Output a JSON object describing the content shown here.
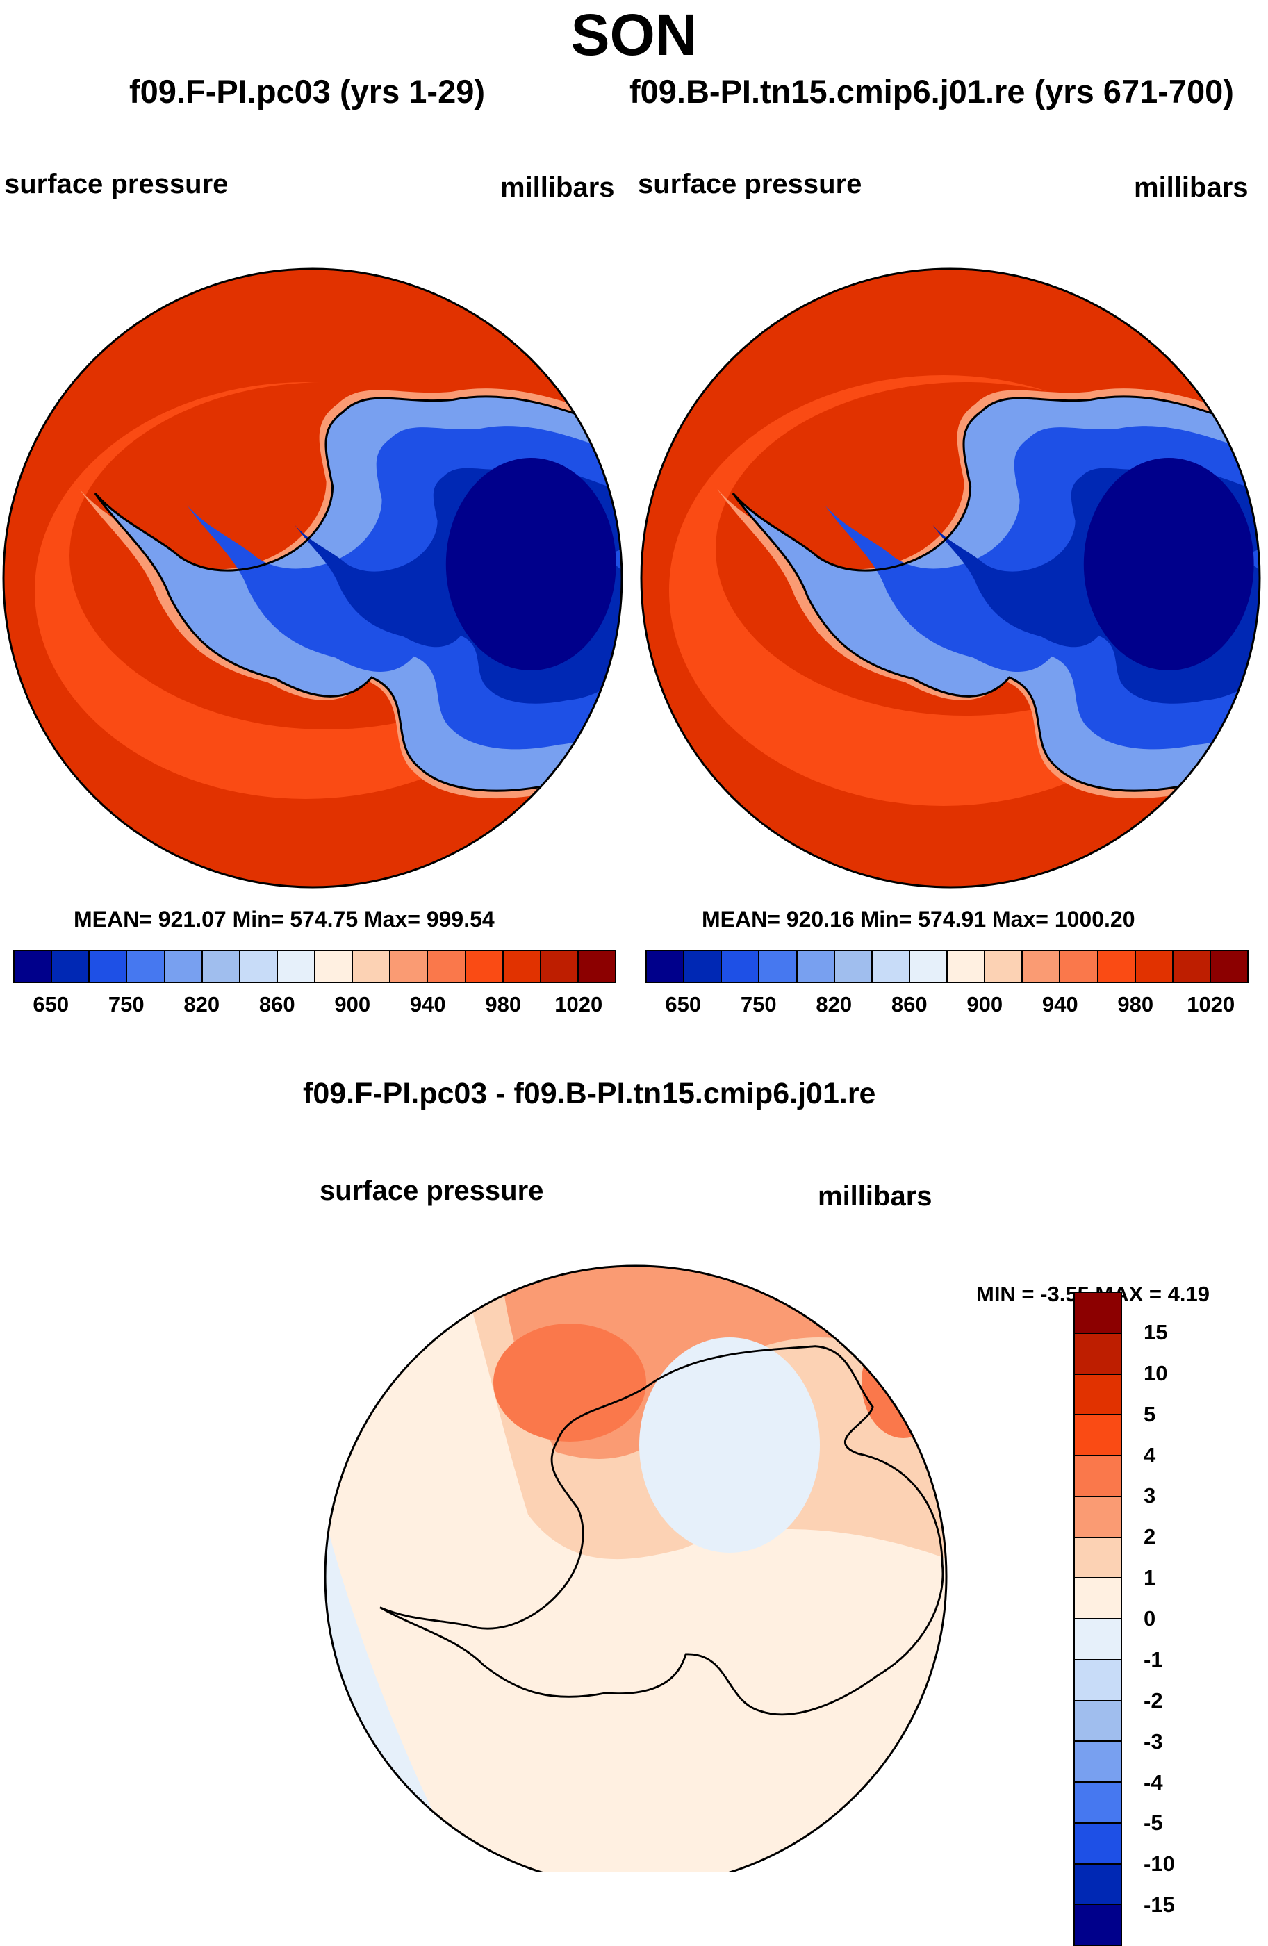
{
  "figure_title": "SON",
  "colors": {
    "abs_levels": [
      "#00008b",
      "#0028b4",
      "#1e50e6",
      "#4678f0",
      "#78a0f0",
      "#a0beee",
      "#c8dcf8",
      "#e6f0fa",
      "#fff0e1",
      "#fcd2b4",
      "#fa9b73",
      "#fa784b",
      "#fa4b14",
      "#e13200",
      "#be1e00",
      "#8c0000"
    ],
    "diff_levels": [
      "#8c0000",
      "#be1e00",
      "#e13200",
      "#fa4b14",
      "#fa784b",
      "#fa9b73",
      "#fcd2b4",
      "#fff0e1",
      "#e6f0fa",
      "#c8dcf8",
      "#a0beee",
      "#78a0f0",
      "#4678f0",
      "#1e50e6",
      "#0028b4",
      "#00008b"
    ],
    "coast": "#000000"
  },
  "chart_data": [
    {
      "type": "polar_map",
      "title": "f09.F-PI.pc03 (yrs 1-29)",
      "variable": "surface pressure",
      "units": "millibars",
      "stats": "MEAN= 921.07  Min= 574.75  Max= 999.54",
      "colorbar_ticks": [
        "650",
        "750",
        "820",
        "860",
        "900",
        "940",
        "980",
        "1020"
      ]
    },
    {
      "type": "polar_map",
      "title": "f09.B-PI.tn15.cmip6.j01.re (yrs 671-700)",
      "variable": "surface pressure",
      "units": "millibars",
      "stats": "MEAN= 920.16  Min= 574.91  Max= 1000.20",
      "colorbar_ticks": [
        "650",
        "750",
        "820",
        "860",
        "900",
        "940",
        "980",
        "1020"
      ]
    },
    {
      "type": "polar_map",
      "title": "f09.F-PI.pc03 - f09.B-PI.tn15.cmip6.j01.re",
      "variable": "surface pressure",
      "units": "millibars",
      "stats": "MIN =  -3.55 MAX =   4.19",
      "colorbar_ticks": [
        "15",
        "10",
        "5",
        "4",
        "3",
        "2",
        "1",
        "0",
        "-1",
        "-2",
        "-3",
        "-4",
        "-5",
        "-10",
        "-15"
      ]
    }
  ]
}
